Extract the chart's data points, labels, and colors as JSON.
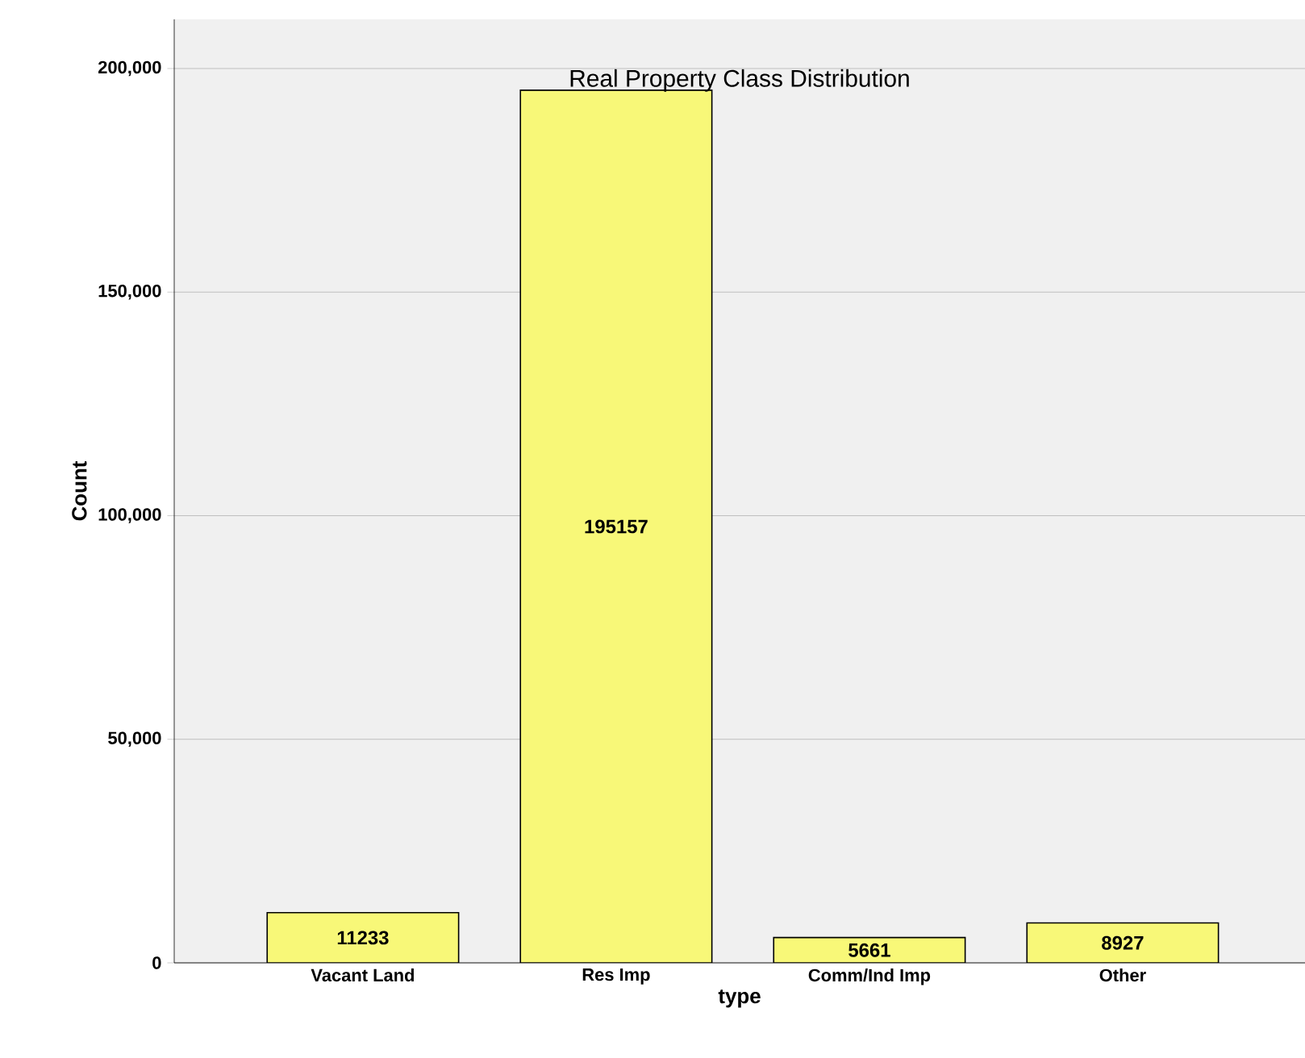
{
  "chart_data": {
    "type": "bar",
    "title": "Real Property Class Distribution",
    "xlabel": "type",
    "ylabel": "Count",
    "categories": [
      "Vacant Land",
      "Res Imp",
      "Comm/Ind Imp",
      "Other"
    ],
    "values": [
      11233,
      195157,
      5661,
      8927
    ],
    "color": "#f8f878",
    "ylim": [
      0,
      211000
    ],
    "yticks": [
      {
        "value": 0,
        "label": "0"
      },
      {
        "value": 50000,
        "label": "50,000"
      },
      {
        "value": 100000,
        "label": "100,000"
      },
      {
        "value": 150000,
        "label": "150,000"
      },
      {
        "value": 200000,
        "label": "200,000"
      }
    ],
    "grid": "y",
    "data_labels": true
  }
}
